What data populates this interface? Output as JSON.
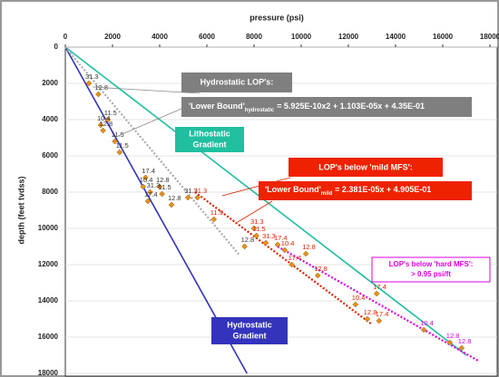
{
  "chart_data": {
    "type": "scatter",
    "x_label": "pressure (psi)",
    "y_label": "depth (feet tvdss)",
    "xlim": [
      0,
      18000
    ],
    "ylim": [
      0,
      18000
    ],
    "y_inverted": true,
    "xticks": [
      0,
      2000,
      4000,
      6000,
      8000,
      10000,
      12000,
      14000,
      16000,
      18000
    ],
    "yticks": [
      0,
      2000,
      4000,
      6000,
      8000,
      10000,
      12000,
      14000,
      16000,
      18000
    ],
    "grid": true,
    "lines": [
      {
        "color": "#1fbfa0",
        "dash": false,
        "x": [
          0,
          17000
        ],
        "y": [
          0,
          17000
        ]
      },
      {
        "color": "#3333bb",
        "dash": false,
        "x": [
          0,
          7700
        ],
        "y": [
          0,
          18000
        ]
      },
      {
        "color": "#aaaaaa",
        "dash": true,
        "x": [
          0,
          7400
        ],
        "y": [
          0,
          11500
        ]
      },
      {
        "color": "#dd2200",
        "dash": true,
        "x": [
          5500,
          13000
        ],
        "y": [
          8000,
          15300
        ]
      },
      {
        "color": "#dd00dd",
        "dash": true,
        "x": [
          9000,
          17500
        ],
        "y": [
          11000,
          17300
        ]
      }
    ],
    "series": [
      {
        "color": "#e8901c",
        "label_color": "#333333",
        "x": [
          1000,
          1400,
          1800,
          1500,
          1600,
          2100,
          2300,
          3400,
          3300,
          4000,
          3600,
          4100,
          3500,
          4500,
          5200,
          7600
        ],
        "values": [
          2000,
          2600,
          4000,
          4300,
          4600,
          5200,
          5800,
          7200,
          7700,
          7700,
          8000,
          8100,
          8500,
          8700,
          8300,
          11000
        ],
        "point_labels": [
          "31.3",
          "12.8",
          "11.5",
          "10.4",
          "12.8",
          "11.5",
          "11.5",
          "17.4",
          "10.4",
          "12.8",
          "31.3",
          "11.5",
          "17.4",
          "12.8",
          "31.3",
          "12.8"
        ]
      },
      {
        "color": "#e8901c",
        "label_color": "#dd2200",
        "x": [
          5600,
          6300,
          8000,
          8100,
          8500,
          9000,
          9300,
          10200,
          9600,
          10700,
          12300,
          12800,
          13300,
          13200
        ],
        "values": [
          8300,
          9500,
          10000,
          10400,
          10800,
          10900,
          11200,
          11400,
          12000,
          12600,
          14200,
          15000,
          15100,
          13600
        ],
        "point_labels": [
          "31.3",
          "11.5",
          "31.3",
          "11.5",
          "31.3",
          "17.4",
          "10.4",
          "12.8",
          "17.4",
          "12.8",
          "10.4",
          "12.8",
          "17.4",
          "17.4"
        ]
      },
      {
        "color": "#e8901c",
        "label_color": "#dd00dd",
        "x": [
          15200,
          16300,
          16800
        ],
        "values": [
          15600,
          16300,
          16600
        ],
        "point_labels": [
          "10.4",
          "12.8",
          "12.8"
        ]
      }
    ],
    "annotations": {
      "hydrostatic_title": "Hydrostatic LOP's:",
      "hydrostatic_formula": {
        "lhs": "'Lower Bound'",
        "sub": "hydrostatic",
        "rhs": "= 5.925E-10x2 + 1.103E-05x + 4.35E-01"
      },
      "lithostatic": [
        "Lithostatic",
        "Gradient"
      ],
      "mild_title": "LOP's below 'mild MFS':",
      "mild_formula": {
        "lhs": "'Lower Bound'",
        "sub": "mild",
        "rhs": "= 2.381E-05x + 4.905E-01"
      },
      "hard": [
        "LOP's below 'hard MFS':",
        "> 0.95 psi/ft"
      ],
      "hydrostatic_gradient": [
        "Hydrostatic",
        "Gradient"
      ]
    }
  }
}
